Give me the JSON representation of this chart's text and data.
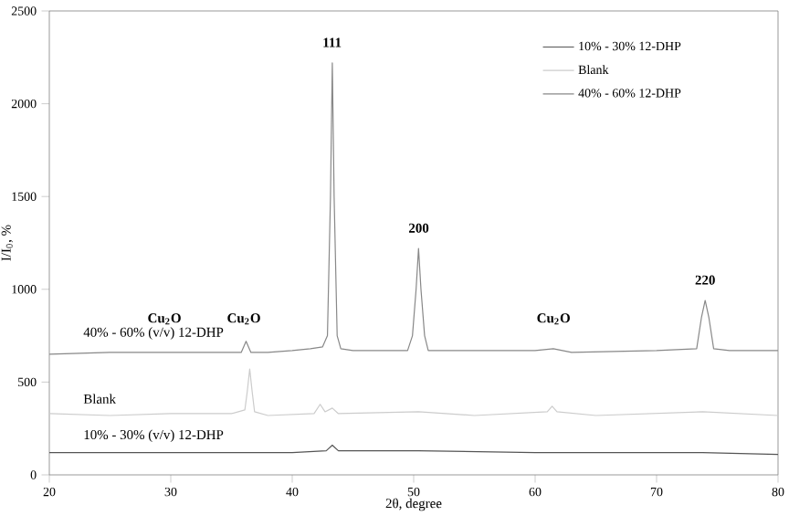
{
  "chart_data": {
    "type": "line",
    "xlabel": "2θ, degree",
    "ylabel": "I/I$_{0}$, %",
    "xlim": [
      20,
      80
    ],
    "xticks": [
      20,
      30,
      40,
      50,
      60,
      70,
      80
    ],
    "ylim": [
      0,
      2500
    ],
    "yticks": [
      0,
      500,
      1000,
      1500,
      2000,
      2500
    ],
    "legend": "top right",
    "grid": false,
    "series": [
      {
        "name": "10% - 30% 12-DHP",
        "color": "#555555",
        "x": [
          20,
          30,
          40,
          42.8,
          43.3,
          43.8,
          50.4,
          60,
          73.8,
          80
        ],
        "values": [
          120,
          120,
          120,
          130,
          160,
          130,
          130,
          120,
          120,
          110
        ]
      },
      {
        "name": "Blank",
        "color": "#cccccc",
        "x": [
          20,
          25,
          30,
          35,
          36.1,
          36.3,
          36.5,
          36.7,
          36.9,
          38,
          41.8,
          42.3,
          42.7,
          43.3,
          43.8,
          50.4,
          55,
          61,
          61.4,
          61.8,
          65,
          73.8,
          80
        ],
        "values": [
          330,
          320,
          330,
          330,
          350,
          450,
          570,
          450,
          340,
          320,
          330,
          380,
          340,
          360,
          330,
          340,
          320,
          340,
          370,
          340,
          320,
          340,
          320
        ]
      },
      {
        "name": "40% - 60% 12-DHP",
        "color": "#888888",
        "x": [
          20,
          25,
          30,
          35,
          35.8,
          36.2,
          36.6,
          38,
          40,
          41.5,
          42.5,
          42.9,
          43.15,
          43.3,
          43.45,
          43.7,
          44,
          45,
          47,
          49.5,
          49.9,
          50.2,
          50.4,
          50.6,
          50.9,
          51.2,
          55,
          60,
          61.5,
          63,
          70,
          73.3,
          73.7,
          74,
          74.3,
          74.7,
          76,
          80
        ],
        "values": [
          650,
          660,
          660,
          660,
          660,
          720,
          660,
          660,
          670,
          680,
          690,
          750,
          1500,
          2220,
          1500,
          750,
          680,
          670,
          670,
          670,
          750,
          1000,
          1220,
          1000,
          750,
          670,
          670,
          670,
          680,
          660,
          670,
          680,
          850,
          940,
          850,
          680,
          670,
          670
        ]
      }
    ],
    "annotations": [
      "40% - 60% (v/v) 12-DHP",
      "Blank",
      "10% - 30% (v/v) 12-DHP",
      "Cu$_{2}$O",
      "Cu$_{2}$O",
      "Cu$_{2}$O",
      "111",
      "200",
      "220"
    ]
  }
}
